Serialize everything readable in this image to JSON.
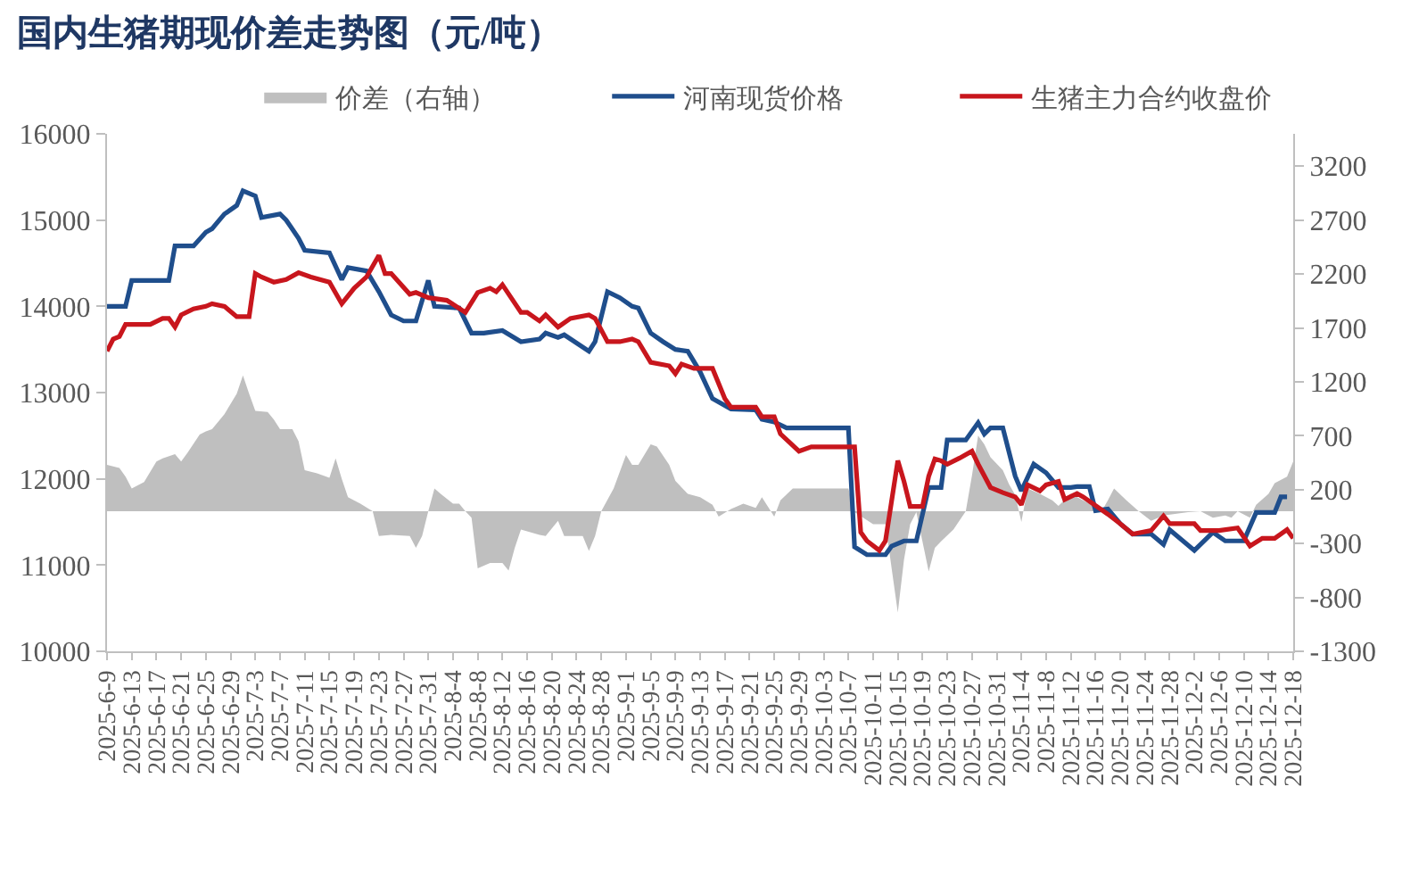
{
  "chart_data": {
    "type": "line",
    "title": "国内生猪期现价差走势图（元/吨）",
    "legend": "top",
    "xlim": [
      "2025-06-09",
      "2025-12-18"
    ],
    "xticks": [
      {
        "value": "2025-06-09",
        "label": "2025-6-9"
      },
      {
        "value": "2025-06-13",
        "label": "2025-6-13"
      },
      {
        "value": "2025-06-17",
        "label": "2025-6-17"
      },
      {
        "value": "2025-06-21",
        "label": "2025-6-21"
      },
      {
        "value": "2025-06-25",
        "label": "2025-6-25"
      },
      {
        "value": "2025-06-29",
        "label": "2025-6-29"
      },
      {
        "value": "2025-07-03",
        "label": "2025-7-3"
      },
      {
        "value": "2025-07-07",
        "label": "2025-7-7"
      },
      {
        "value": "2025-07-11",
        "label": "2025-7-11"
      },
      {
        "value": "2025-07-15",
        "label": "2025-7-15"
      },
      {
        "value": "2025-07-19",
        "label": "2025-7-19"
      },
      {
        "value": "2025-07-23",
        "label": "2025-7-23"
      },
      {
        "value": "2025-07-27",
        "label": "2025-7-27"
      },
      {
        "value": "2025-07-31",
        "label": "2025-7-31"
      },
      {
        "value": "2025-08-04",
        "label": "2025-8-4"
      },
      {
        "value": "2025-08-08",
        "label": "2025-8-8"
      },
      {
        "value": "2025-08-12",
        "label": "2025-8-12"
      },
      {
        "value": "2025-08-16",
        "label": "2025-8-16"
      },
      {
        "value": "2025-08-20",
        "label": "2025-8-20"
      },
      {
        "value": "2025-08-24",
        "label": "2025-8-24"
      },
      {
        "value": "2025-08-28",
        "label": "2025-8-28"
      },
      {
        "value": "2025-09-01",
        "label": "2025-9-1"
      },
      {
        "value": "2025-09-05",
        "label": "2025-9-5"
      },
      {
        "value": "2025-09-09",
        "label": "2025-9-9"
      },
      {
        "value": "2025-09-13",
        "label": "2025-9-13"
      },
      {
        "value": "2025-09-17",
        "label": "2025-9-17"
      },
      {
        "value": "2025-09-21",
        "label": "2025-9-21"
      },
      {
        "value": "2025-09-25",
        "label": "2025-9-25"
      },
      {
        "value": "2025-09-29",
        "label": "2025-9-29"
      },
      {
        "value": "2025-10-03",
        "label": "2025-10-3"
      },
      {
        "value": "2025-10-07",
        "label": "2025-10-7"
      },
      {
        "value": "2025-10-11",
        "label": "2025-10-11"
      },
      {
        "value": "2025-10-15",
        "label": "2025-10-15"
      },
      {
        "value": "2025-10-19",
        "label": "2025-10-19"
      },
      {
        "value": "2025-10-23",
        "label": "2025-10-23"
      },
      {
        "value": "2025-10-27",
        "label": "2025-10-27"
      },
      {
        "value": "2025-10-31",
        "label": "2025-10-31"
      },
      {
        "value": "2025-11-04",
        "label": "2025-11-4"
      },
      {
        "value": "2025-11-08",
        "label": "2025-11-8"
      },
      {
        "value": "2025-11-12",
        "label": "2025-11-12"
      },
      {
        "value": "2025-11-16",
        "label": "2025-11-16"
      },
      {
        "value": "2025-11-20",
        "label": "2025-11-20"
      },
      {
        "value": "2025-11-24",
        "label": "2025-11-24"
      },
      {
        "value": "2025-11-28",
        "label": "2025-11-28"
      },
      {
        "value": "2025-12-02",
        "label": "2025-12-2"
      },
      {
        "value": "2025-12-06",
        "label": "2025-12-6"
      },
      {
        "value": "2025-12-10",
        "label": "2025-12-10"
      },
      {
        "value": "2025-12-14",
        "label": "2025-12-14"
      },
      {
        "value": "2025-12-18",
        "label": "2025-12-18"
      }
    ],
    "ylim": [
      10000,
      16000
    ],
    "yticks": [
      10000,
      11000,
      12000,
      13000,
      14000,
      15000,
      16000
    ],
    "y2lim": [
      -1300,
      3500
    ],
    "y2ticks": [
      -1300,
      -800,
      -300,
      200,
      700,
      1200,
      1700,
      2200,
      2700,
      3200
    ],
    "series": [
      {
        "name": "价差（右轴）",
        "type": "area",
        "axis": "y2",
        "color": "#bfbfbf",
        "x": [
          "2025-06-09",
          "2025-06-11",
          "2025-06-12",
          "2025-06-13",
          "2025-06-15",
          "2025-06-17",
          "2025-06-18",
          "2025-06-20",
          "2025-06-21",
          "2025-06-22",
          "2025-06-24",
          "2025-06-25",
          "2025-06-26",
          "2025-06-28",
          "2025-06-30",
          "2025-07-01",
          "2025-07-02",
          "2025-07-03",
          "2025-07-05",
          "2025-07-06",
          "2025-07-07",
          "2025-07-09",
          "2025-07-10",
          "2025-07-11",
          "2025-07-13",
          "2025-07-15",
          "2025-07-16",
          "2025-07-17",
          "2025-07-18",
          "2025-07-20",
          "2025-07-22",
          "2025-07-23",
          "2025-07-25",
          "2025-07-28",
          "2025-07-29",
          "2025-07-30",
          "2025-07-31",
          "2025-08-01",
          "2025-08-02",
          "2025-08-04",
          "2025-08-05",
          "2025-08-06",
          "2025-08-07",
          "2025-08-08",
          "2025-08-10",
          "2025-08-12",
          "2025-08-13",
          "2025-08-14",
          "2025-08-15",
          "2025-08-18",
          "2025-08-19",
          "2025-08-21",
          "2025-08-22",
          "2025-08-25",
          "2025-08-26",
          "2025-08-27",
          "2025-08-28",
          "2025-08-30",
          "2025-09-01",
          "2025-09-02",
          "2025-09-03",
          "2025-09-05",
          "2025-09-06",
          "2025-09-08",
          "2025-09-09",
          "2025-09-11",
          "2025-09-13",
          "2025-09-15",
          "2025-09-16",
          "2025-09-18",
          "2025-09-20",
          "2025-09-22",
          "2025-09-23",
          "2025-09-25",
          "2025-09-26",
          "2025-09-28",
          "2025-09-30",
          "2025-10-07",
          "2025-10-08",
          "2025-10-11",
          "2025-10-13",
          "2025-10-15",
          "2025-10-16",
          "2025-10-17",
          "2025-10-18",
          "2025-10-20",
          "2025-10-21",
          "2025-10-22",
          "2025-10-24",
          "2025-10-26",
          "2025-10-27",
          "2025-10-28",
          "2025-10-29",
          "2025-10-30",
          "2025-11-01",
          "2025-11-02",
          "2025-11-03",
          "2025-11-04",
          "2025-11-05",
          "2025-11-07",
          "2025-11-09",
          "2025-11-10",
          "2025-11-12",
          "2025-11-15",
          "2025-11-17",
          "2025-11-18",
          "2025-11-19",
          "2025-11-21",
          "2025-11-23",
          "2025-11-25",
          "2025-11-27",
          "2025-12-01",
          "2025-12-03",
          "2025-12-05",
          "2025-12-07",
          "2025-12-08",
          "2025-12-09",
          "2025-12-11",
          "2025-12-12",
          "2025-12-14",
          "2025-12-15",
          "2025-12-17",
          "2025-12-18"
        ],
        "values": [
          430,
          400,
          320,
          210,
          270,
          460,
          490,
          530,
          460,
          540,
          710,
          740,
          760,
          900,
          1090,
          1260,
          1090,
          930,
          920,
          850,
          760,
          760,
          650,
          380,
          350,
          310,
          490,
          300,
          130,
          70,
          0,
          -230,
          -220,
          -230,
          -340,
          -230,
          0,
          210,
          160,
          70,
          70,
          0,
          -60,
          -530,
          -480,
          -480,
          -550,
          -340,
          -170,
          -220,
          -230,
          -90,
          -230,
          -230,
          -370,
          -230,
          0,
          210,
          520,
          430,
          430,
          620,
          600,
          430,
          280,
          160,
          130,
          60,
          -50,
          20,
          70,
          30,
          130,
          -50,
          100,
          210,
          210,
          210,
          -10,
          -120,
          -120,
          -940,
          -450,
          -120,
          -10,
          -560,
          -340,
          -280,
          -170,
          0,
          330,
          700,
          620,
          500,
          380,
          250,
          150,
          -100,
          210,
          160,
          100,
          50,
          160,
          70,
          0,
          100,
          210,
          100,
          0,
          -90,
          -40,
          -10,
          0,
          -60,
          -40,
          -60,
          0,
          -60,
          60,
          160,
          260,
          320,
          460
        ]
      },
      {
        "name": "河南现货价格",
        "type": "line",
        "color": "#1f4e8c",
        "x": [
          "2025-06-09",
          "2025-06-12",
          "2025-06-13",
          "2025-06-19",
          "2025-06-20",
          "2025-06-23",
          "2025-06-25",
          "2025-06-26",
          "2025-06-28",
          "2025-06-30",
          "2025-07-01",
          "2025-07-03",
          "2025-07-04",
          "2025-07-07",
          "2025-07-08",
          "2025-07-10",
          "2025-07-11",
          "2025-07-15",
          "2025-07-17",
          "2025-07-18",
          "2025-07-21",
          "2025-07-23",
          "2025-07-25",
          "2025-07-27",
          "2025-07-29",
          "2025-07-31",
          "2025-08-01",
          "2025-08-05",
          "2025-08-07",
          "2025-08-09",
          "2025-08-12",
          "2025-08-15",
          "2025-08-18",
          "2025-08-19",
          "2025-08-21",
          "2025-08-22",
          "2025-08-26",
          "2025-08-27",
          "2025-08-29",
          "2025-08-31",
          "2025-09-02",
          "2025-09-03",
          "2025-09-05",
          "2025-09-07",
          "2025-09-09",
          "2025-09-11",
          "2025-09-13",
          "2025-09-15",
          "2025-09-18",
          "2025-09-22",
          "2025-09-23",
          "2025-09-25",
          "2025-09-27",
          "2025-10-07",
          "2025-10-08",
          "2025-10-10",
          "2025-10-13",
          "2025-10-14",
          "2025-10-16",
          "2025-10-18",
          "2025-10-20",
          "2025-10-22",
          "2025-10-23",
          "2025-10-26",
          "2025-10-28",
          "2025-10-29",
          "2025-10-30",
          "2025-11-01",
          "2025-11-03",
          "2025-11-04",
          "2025-11-06",
          "2025-11-08",
          "2025-11-10",
          "2025-11-12",
          "2025-11-13",
          "2025-11-15",
          "2025-11-16",
          "2025-11-18",
          "2025-11-20",
          "2025-11-22",
          "2025-11-25",
          "2025-11-27",
          "2025-11-28",
          "2025-12-02",
          "2025-12-03",
          "2025-12-05",
          "2025-12-07",
          "2025-12-10",
          "2025-12-12",
          "2025-12-15",
          "2025-12-16",
          "2025-12-17"
        ],
        "values": [
          14000,
          14000,
          14300,
          14300,
          14700,
          14700,
          14860,
          14900,
          15070,
          15170,
          15340,
          15280,
          15030,
          15070,
          15000,
          14790,
          14650,
          14620,
          14310,
          14450,
          14410,
          14170,
          13900,
          13830,
          13830,
          14300,
          14000,
          13980,
          13690,
          13690,
          13720,
          13590,
          13620,
          13690,
          13640,
          13670,
          13480,
          13590,
          14170,
          14100,
          14000,
          13980,
          13690,
          13590,
          13500,
          13480,
          13240,
          12930,
          12810,
          12800,
          12690,
          12660,
          12590,
          12590,
          11210,
          11120,
          11120,
          11220,
          11280,
          11280,
          11900,
          11900,
          12450,
          12450,
          12650,
          12520,
          12590,
          12590,
          12030,
          11860,
          12170,
          12070,
          11900,
          11900,
          11910,
          11910,
          11630,
          11650,
          11480,
          11360,
          11360,
          11240,
          11410,
          11170,
          11240,
          11380,
          11280,
          11280,
          11610,
          11610,
          11790,
          11790
        ]
      },
      {
        "name": "生猪主力合约收盘价",
        "type": "line",
        "color": "#c8161d",
        "x": [
          "2025-06-09",
          "2025-06-10",
          "2025-06-11",
          "2025-06-12",
          "2025-06-16",
          "2025-06-18",
          "2025-06-19",
          "2025-06-20",
          "2025-06-21",
          "2025-06-23",
          "2025-06-25",
          "2025-06-26",
          "2025-06-28",
          "2025-06-30",
          "2025-07-02",
          "2025-07-03",
          "2025-07-04",
          "2025-07-06",
          "2025-07-08",
          "2025-07-10",
          "2025-07-12",
          "2025-07-15",
          "2025-07-17",
          "2025-07-19",
          "2025-07-21",
          "2025-07-23",
          "2025-07-24",
          "2025-07-25",
          "2025-07-28",
          "2025-07-29",
          "2025-07-31",
          "2025-08-03",
          "2025-08-06",
          "2025-08-08",
          "2025-08-10",
          "2025-08-11",
          "2025-08-12",
          "2025-08-15",
          "2025-08-16",
          "2025-08-18",
          "2025-08-19",
          "2025-08-21",
          "2025-08-23",
          "2025-08-26",
          "2025-08-27",
          "2025-08-29",
          "2025-08-31",
          "2025-09-02",
          "2025-09-03",
          "2025-09-05",
          "2025-09-08",
          "2025-09-09",
          "2025-09-10",
          "2025-09-12",
          "2025-09-15",
          "2025-09-17",
          "2025-09-18",
          "2025-09-22",
          "2025-09-23",
          "2025-09-25",
          "2025-09-26",
          "2025-09-29",
          "2025-10-01",
          "2025-10-08",
          "2025-10-09",
          "2025-10-10",
          "2025-10-12",
          "2025-10-13",
          "2025-10-15",
          "2025-10-16",
          "2025-10-17",
          "2025-10-19",
          "2025-10-20",
          "2025-10-21",
          "2025-10-22",
          "2025-10-23",
          "2025-10-25",
          "2025-10-27",
          "2025-10-28",
          "2025-10-30",
          "2025-11-01",
          "2025-11-03",
          "2025-11-04",
          "2025-11-05",
          "2025-11-07",
          "2025-11-08",
          "2025-11-10",
          "2025-11-11",
          "2025-11-13",
          "2025-11-14",
          "2025-11-16",
          "2025-11-18",
          "2025-11-20",
          "2025-11-22",
          "2025-11-25",
          "2025-11-27",
          "2025-11-28",
          "2025-12-02",
          "2025-12-03",
          "2025-12-06",
          "2025-12-09",
          "2025-12-11",
          "2025-12-13",
          "2025-12-15",
          "2025-12-17",
          "2025-12-18"
        ],
        "values": [
          13480,
          13620,
          13650,
          13790,
          13790,
          13860,
          13860,
          13760,
          13900,
          13970,
          14000,
          14030,
          14000,
          13880,
          13880,
          14380,
          14340,
          14280,
          14310,
          14390,
          14340,
          14280,
          14030,
          14210,
          14340,
          14590,
          14380,
          14380,
          14140,
          14160,
          14100,
          14070,
          13930,
          14160,
          14210,
          14170,
          14250,
          13930,
          13930,
          13830,
          13900,
          13760,
          13860,
          13900,
          13860,
          13590,
          13590,
          13620,
          13590,
          13350,
          13310,
          13220,
          13330,
          13280,
          13280,
          12930,
          12830,
          12830,
          12720,
          12720,
          12520,
          12320,
          12370,
          12370,
          11380,
          11280,
          11170,
          11280,
          12210,
          11970,
          11680,
          11680,
          12030,
          12230,
          12210,
          12170,
          12240,
          12320,
          12170,
          11900,
          11840,
          11790,
          11700,
          11930,
          11860,
          11930,
          11970,
          11760,
          11830,
          11790,
          11690,
          11590,
          11480,
          11360,
          11400,
          11570,
          11480,
          11480,
          11400,
          11400,
          11430,
          11220,
          11310,
          11310,
          11410,
          11310
        ]
      }
    ]
  }
}
